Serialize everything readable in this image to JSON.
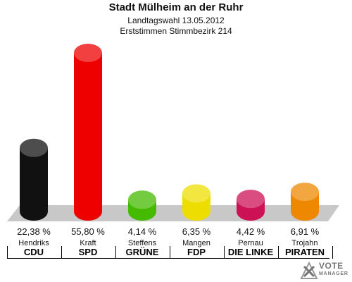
{
  "header": {
    "title": "Stadt Mülheim an der Ruhr",
    "subtitle": "Landtagswahl 13.05.2012",
    "subtitle2": "Erststimmen Stimmbezirk 214"
  },
  "chart_data": {
    "type": "bar",
    "categories": [
      "CDU",
      "SPD",
      "GRÜNE",
      "FDP",
      "DIE LINKE",
      "PIRATEN"
    ],
    "candidates": [
      "Hendriks",
      "Kraft",
      "Steffens",
      "Mangen",
      "Pernau",
      "Trojahn"
    ],
    "values": [
      22.38,
      55.8,
      4.14,
      6.35,
      4.42,
      6.91
    ],
    "value_labels": [
      "22,38 %",
      "55,80 %",
      "4,14 %",
      "6,35 %",
      "4,42 %",
      "6,91 %"
    ],
    "colors": [
      "#111111",
      "#ee0000",
      "#44bb00",
      "#eedd00",
      "#cc1155",
      "#ee8800"
    ],
    "ylim": [
      0,
      55.8
    ],
    "grid": false,
    "legend": "none"
  },
  "logo": {
    "line1": "VOTE",
    "line2": "MANAGER"
  }
}
